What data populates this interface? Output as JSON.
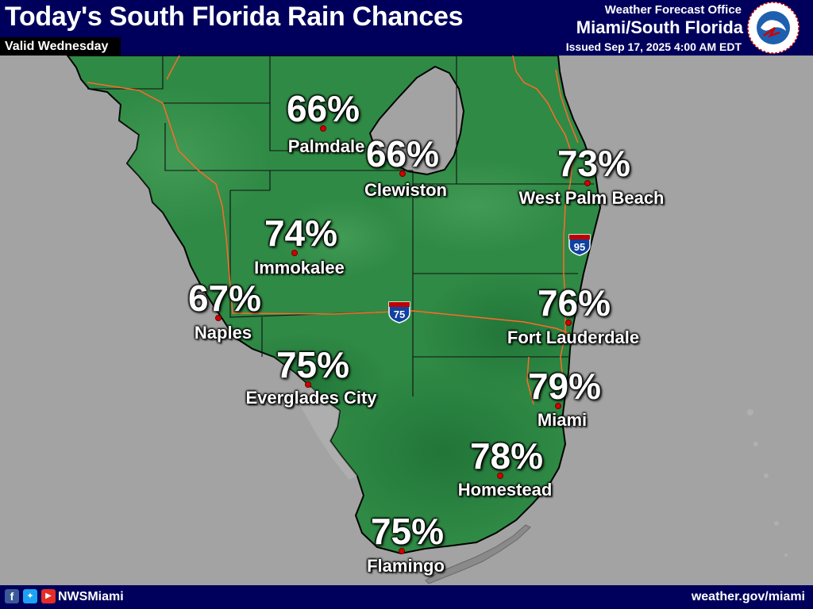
{
  "header": {
    "title": "Today's South Florida Rain Chances",
    "valid": "Valid Wednesday",
    "office_line": "Weather Forecast Office",
    "office_name": "Miami/South Florida",
    "issued": "Issued Sep 17, 2025 4:00 AM EDT",
    "logo_icon": "nws-logo-icon"
  },
  "map": {
    "land_color": "#2f8a45",
    "water_color": "#a3a3a3",
    "lake_name": "",
    "interstates": [
      "75",
      "95"
    ]
  },
  "stations": [
    {
      "name": "Palmdale",
      "chance": "66%"
    },
    {
      "name": "Clewiston",
      "chance": "66%"
    },
    {
      "name": "West Palm Beach",
      "chance": "73%"
    },
    {
      "name": "Immokalee",
      "chance": "74%"
    },
    {
      "name": "Naples",
      "chance": "67%"
    },
    {
      "name": "Fort Lauderdale",
      "chance": "76%"
    },
    {
      "name": "Everglades City",
      "chance": "75%"
    },
    {
      "name": "Miami",
      "chance": "79%"
    },
    {
      "name": "Homestead",
      "chance": "78%"
    },
    {
      "name": "Flamingo",
      "chance": "75%"
    }
  ],
  "footer": {
    "social_icons": [
      "facebook-icon",
      "twitter-icon",
      "youtube-icon"
    ],
    "handle": "NWSMiami",
    "website": "weather.gov/miami"
  }
}
